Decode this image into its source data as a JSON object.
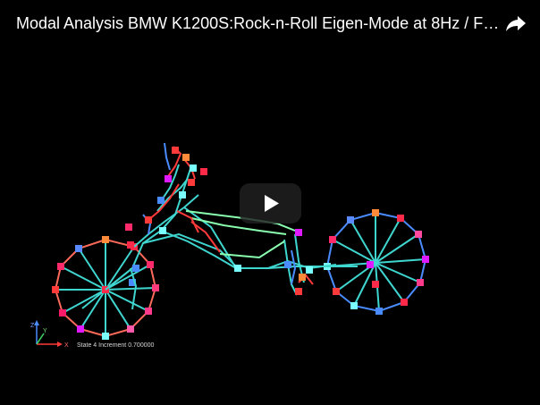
{
  "video": {
    "title": "Modal Analysis BMW K1200S:Rock-n-Roll Eigen-Mode at 8Hz / FE S..",
    "share_icon": "share-arrow-icon",
    "play_icon": "play-icon"
  },
  "viewport": {
    "state_label": "State 4 Increment 0.700000",
    "axis_labels": {
      "x": "X",
      "y": "Y",
      "z": "Z"
    }
  },
  "colors": {
    "background": "#000000",
    "spokes": "#3fd6d0",
    "rim_hot": "#ff2a6a",
    "rim_warm": "#ff7a4a",
    "rim_cool": "#4a8cff",
    "frame_hot": "#ff3a3a",
    "frame_green": "#8affb0",
    "node_cyan": "#7affff",
    "node_magenta": "#e01aff",
    "play_overlay": "#212121"
  }
}
